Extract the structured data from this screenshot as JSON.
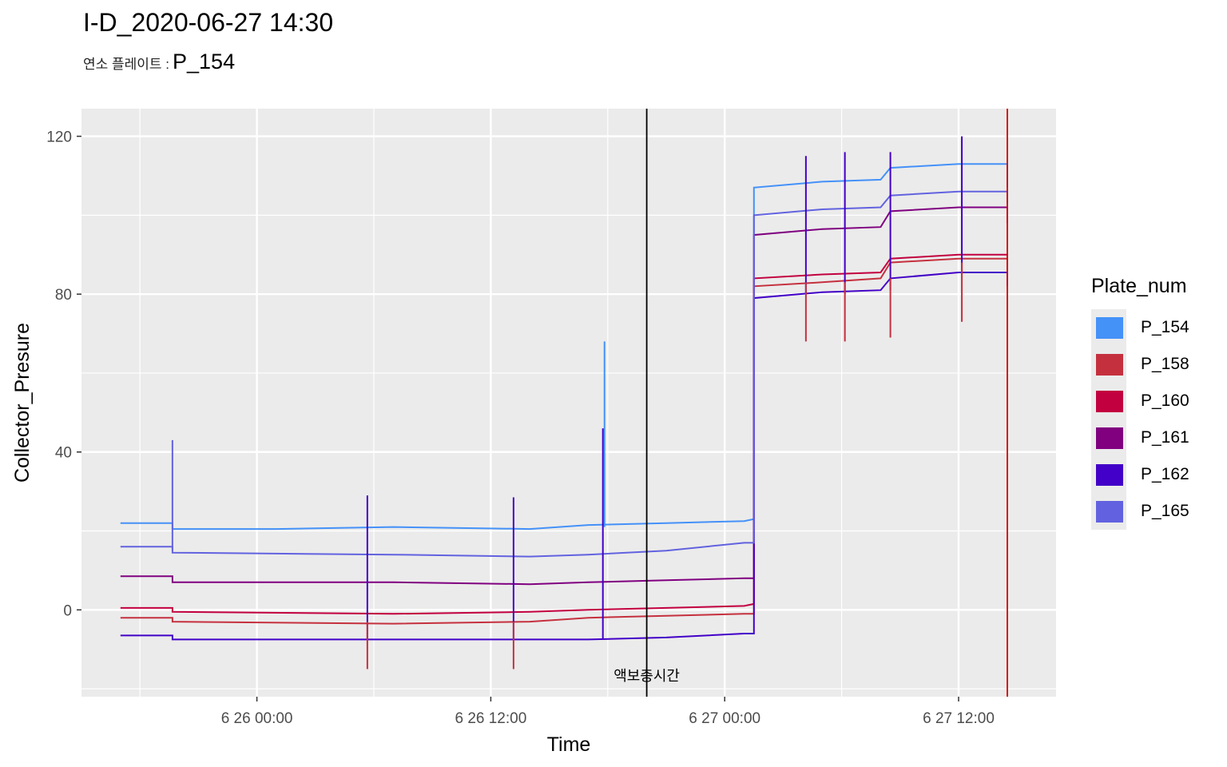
{
  "title": "I-D_2020-06-27 14:30",
  "subtitle": {
    "label": "연소 플레이트 :",
    "value": "P_154"
  },
  "chart_data": {
    "type": "line",
    "xlabel": "Time",
    "ylabel": "Collector_Presure",
    "x_ticks": [
      "6 26 00:00",
      "6 26 12:00",
      "6 27 00:00",
      "6 27 12:00"
    ],
    "y_ticks": [
      0,
      40,
      80,
      120
    ],
    "xlim": [
      "2020-06-25 15:00",
      "2020-06-27 17:00"
    ],
    "ylim": [
      -22,
      127
    ],
    "grid": true,
    "legend": {
      "title": "Plate_num",
      "position": "right"
    },
    "series": [
      {
        "name": "P_154",
        "color": "#4491f8",
        "points": [
          [
            "2020-06-25 17:00",
            22
          ],
          [
            "2020-06-25 19:40",
            22
          ],
          [
            "2020-06-25 19:40",
            20.5
          ],
          [
            "2020-06-26 01:00",
            20.5
          ],
          [
            "2020-06-26 07:00",
            21
          ],
          [
            "2020-06-26 14:00",
            20.5
          ],
          [
            "2020-06-26 17:00",
            21.5
          ],
          [
            "2020-06-26 21:00",
            22
          ],
          [
            "2020-06-27 01:00",
            22.5
          ],
          [
            "2020-06-27 01:30",
            23
          ],
          [
            "2020-06-27 01:30",
            107
          ],
          [
            "2020-06-27 05:00",
            108.5
          ],
          [
            "2020-06-27 08:00",
            109
          ],
          [
            "2020-06-27 08:30",
            112
          ],
          [
            "2020-06-27 12:00",
            113
          ],
          [
            "2020-06-27 14:30",
            113
          ],
          [
            "2020-06-27 14:30",
            107
          ]
        ]
      },
      {
        "name": "P_158",
        "color": "#c5303e",
        "points": [
          [
            "2020-06-25 17:00",
            -2
          ],
          [
            "2020-06-25 19:40",
            -2
          ],
          [
            "2020-06-25 19:40",
            -3
          ],
          [
            "2020-06-26 07:00",
            -3.5
          ],
          [
            "2020-06-26 14:00",
            -3
          ],
          [
            "2020-06-26 17:00",
            -2
          ],
          [
            "2020-06-26 21:00",
            -1.5
          ],
          [
            "2020-06-27 01:00",
            -1
          ],
          [
            "2020-06-27 01:30",
            -1
          ],
          [
            "2020-06-27 01:30",
            82
          ],
          [
            "2020-06-27 05:00",
            83
          ],
          [
            "2020-06-27 08:00",
            84
          ],
          [
            "2020-06-27 08:30",
            88
          ],
          [
            "2020-06-27 12:00",
            89
          ],
          [
            "2020-06-27 14:30",
            89
          ],
          [
            "2020-06-27 14:30",
            86
          ]
        ]
      },
      {
        "name": "P_160",
        "color": "#c2003f",
        "points": [
          [
            "2020-06-25 17:00",
            0.5
          ],
          [
            "2020-06-25 19:40",
            0.5
          ],
          [
            "2020-06-25 19:40",
            -0.5
          ],
          [
            "2020-06-26 07:00",
            -1
          ],
          [
            "2020-06-26 14:00",
            -0.5
          ],
          [
            "2020-06-26 17:00",
            0
          ],
          [
            "2020-06-26 21:00",
            0.5
          ],
          [
            "2020-06-27 01:00",
            1
          ],
          [
            "2020-06-27 01:30",
            1.5
          ],
          [
            "2020-06-27 01:30",
            84
          ],
          [
            "2020-06-27 05:00",
            85
          ],
          [
            "2020-06-27 08:00",
            85.5
          ],
          [
            "2020-06-27 08:30",
            89
          ],
          [
            "2020-06-27 12:00",
            90
          ],
          [
            "2020-06-27 14:30",
            90
          ],
          [
            "2020-06-27 14:30",
            87
          ]
        ]
      },
      {
        "name": "P_161",
        "color": "#800080",
        "points": [
          [
            "2020-06-25 17:00",
            8.5
          ],
          [
            "2020-06-25 19:40",
            8.5
          ],
          [
            "2020-06-25 19:40",
            7
          ],
          [
            "2020-06-26 07:00",
            7
          ],
          [
            "2020-06-26 14:00",
            6.5
          ],
          [
            "2020-06-26 17:00",
            7
          ],
          [
            "2020-06-26 21:00",
            7.5
          ],
          [
            "2020-06-27 01:00",
            8
          ],
          [
            "2020-06-27 01:30",
            8
          ],
          [
            "2020-06-27 01:30",
            95
          ],
          [
            "2020-06-27 05:00",
            96.5
          ],
          [
            "2020-06-27 08:00",
            97
          ],
          [
            "2020-06-27 08:30",
            101
          ],
          [
            "2020-06-27 12:00",
            102
          ],
          [
            "2020-06-27 14:30",
            102
          ],
          [
            "2020-06-27 14:30",
            98
          ]
        ]
      },
      {
        "name": "P_162",
        "color": "#4200c8",
        "points": [
          [
            "2020-06-25 17:00",
            -6.5
          ],
          [
            "2020-06-25 19:40",
            -6.5
          ],
          [
            "2020-06-25 19:40",
            -7.5
          ],
          [
            "2020-06-26 07:00",
            -7.5
          ],
          [
            "2020-06-26 14:00",
            -7.5
          ],
          [
            "2020-06-26 17:00",
            -7.5
          ],
          [
            "2020-06-26 21:00",
            -7
          ],
          [
            "2020-06-27 01:00",
            -6
          ],
          [
            "2020-06-27 01:30",
            -6
          ],
          [
            "2020-06-27 01:30",
            79
          ],
          [
            "2020-06-27 05:00",
            80.5
          ],
          [
            "2020-06-27 08:00",
            81
          ],
          [
            "2020-06-27 08:30",
            84
          ],
          [
            "2020-06-27 12:00",
            85.5
          ],
          [
            "2020-06-27 14:30",
            85.5
          ],
          [
            "2020-06-27 14:30",
            82
          ]
        ]
      },
      {
        "name": "P_165",
        "color": "#6262e0",
        "points": [
          [
            "2020-06-25 17:00",
            16
          ],
          [
            "2020-06-25 19:40",
            16
          ],
          [
            "2020-06-25 19:40",
            14.5
          ],
          [
            "2020-06-26 07:00",
            14
          ],
          [
            "2020-06-26 14:00",
            13.5
          ],
          [
            "2020-06-26 17:00",
            14
          ],
          [
            "2020-06-26 21:00",
            15
          ],
          [
            "2020-06-27 01:00",
            17
          ],
          [
            "2020-06-27 01:30",
            17
          ],
          [
            "2020-06-27 01:30",
            100
          ],
          [
            "2020-06-27 05:00",
            101.5
          ],
          [
            "2020-06-27 08:00",
            102
          ],
          [
            "2020-06-27 08:30",
            105
          ],
          [
            "2020-06-27 12:00",
            106
          ],
          [
            "2020-06-27 14:30",
            106
          ],
          [
            "2020-06-27 14:30",
            103
          ]
        ]
      }
    ],
    "spikes": [
      {
        "series": "P_165",
        "x": "2020-06-25 19:40",
        "y1": 15,
        "y2": 43
      },
      {
        "series": "P_162",
        "x": "2020-06-26 05:40",
        "y1": -7.5,
        "y2": 29
      },
      {
        "series": "P_158",
        "x": "2020-06-26 05:40",
        "y1": -3,
        "y2": -15
      },
      {
        "series": "P_162",
        "x": "2020-06-26 13:10",
        "y1": -7.5,
        "y2": 28.5
      },
      {
        "series": "P_158",
        "x": "2020-06-26 13:10",
        "y1": -3,
        "y2": -15
      },
      {
        "series": "P_154",
        "x": "2020-06-26 17:50",
        "y1": 21,
        "y2": 68
      },
      {
        "series": "P_162",
        "x": "2020-06-26 17:45",
        "y1": -7.5,
        "y2": 46
      },
      {
        "series": "P_162",
        "x": "2020-06-27 04:10",
        "y1": 80,
        "y2": 115
      },
      {
        "series": "P_158",
        "x": "2020-06-27 04:10",
        "y1": 83,
        "y2": 68
      },
      {
        "series": "P_162",
        "x": "2020-06-27 06:10",
        "y1": 80,
        "y2": 116
      },
      {
        "series": "P_158",
        "x": "2020-06-27 06:10",
        "y1": 83,
        "y2": 68
      },
      {
        "series": "P_162",
        "x": "2020-06-27 08:30",
        "y1": 81,
        "y2": 116
      },
      {
        "series": "P_158",
        "x": "2020-06-27 08:30",
        "y1": 84,
        "y2": 69
      },
      {
        "series": "P_162",
        "x": "2020-06-27 12:10",
        "y1": 85,
        "y2": 120
      },
      {
        "series": "P_158",
        "x": "2020-06-27 12:10",
        "y1": 88,
        "y2": 73
      }
    ],
    "vlines": [
      {
        "x": "2020-06-26 20:00",
        "color": "#000000",
        "label": "액보충시간"
      },
      {
        "x": "2020-06-27 14:30",
        "color": "#d40000",
        "label": ""
      }
    ]
  }
}
